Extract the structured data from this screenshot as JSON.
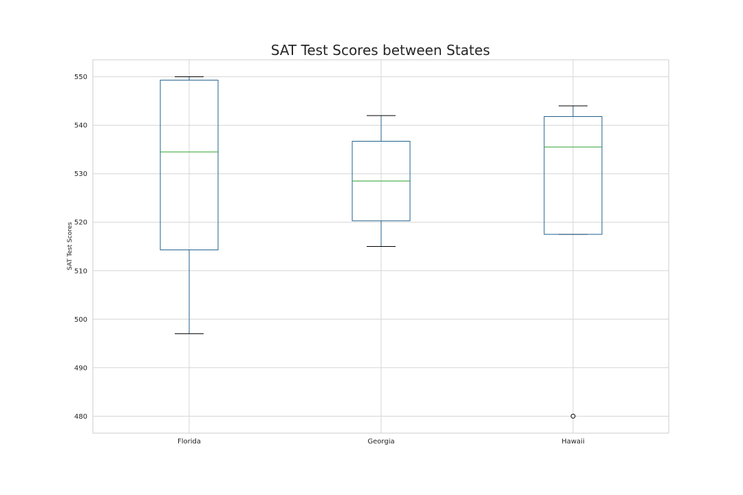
{
  "chart_data": {
    "type": "box",
    "title": "SAT Test Scores between States",
    "xlabel": "",
    "ylabel": "SAT Test Scores",
    "categories": [
      "Florida",
      "Georgia",
      "Hawaii"
    ],
    "ylim": [
      476.5,
      553.5
    ],
    "yticks": [
      480,
      490,
      500,
      510,
      520,
      530,
      540,
      550
    ],
    "grid": true,
    "boxes": [
      {
        "category": "Florida",
        "whisker_low": 497,
        "q1": 514.3,
        "median": 534.5,
        "q3": 549.3,
        "whisker_high": 550,
        "outliers": []
      },
      {
        "category": "Georgia",
        "whisker_low": 515,
        "q1": 520.3,
        "median": 528.5,
        "q3": 536.7,
        "whisker_high": 542,
        "outliers": []
      },
      {
        "category": "Hawaii",
        "whisker_low": 517.5,
        "q1": 517.5,
        "median": 535.5,
        "q3": 541.8,
        "whisker_high": 544,
        "outliers": [
          480
        ]
      }
    ],
    "colors": {
      "box": "#1f5f8b",
      "median": "#2ca02c",
      "whisker_cap": "#000000",
      "grid": "#d5d5d5",
      "frame": "#cccccc"
    }
  }
}
